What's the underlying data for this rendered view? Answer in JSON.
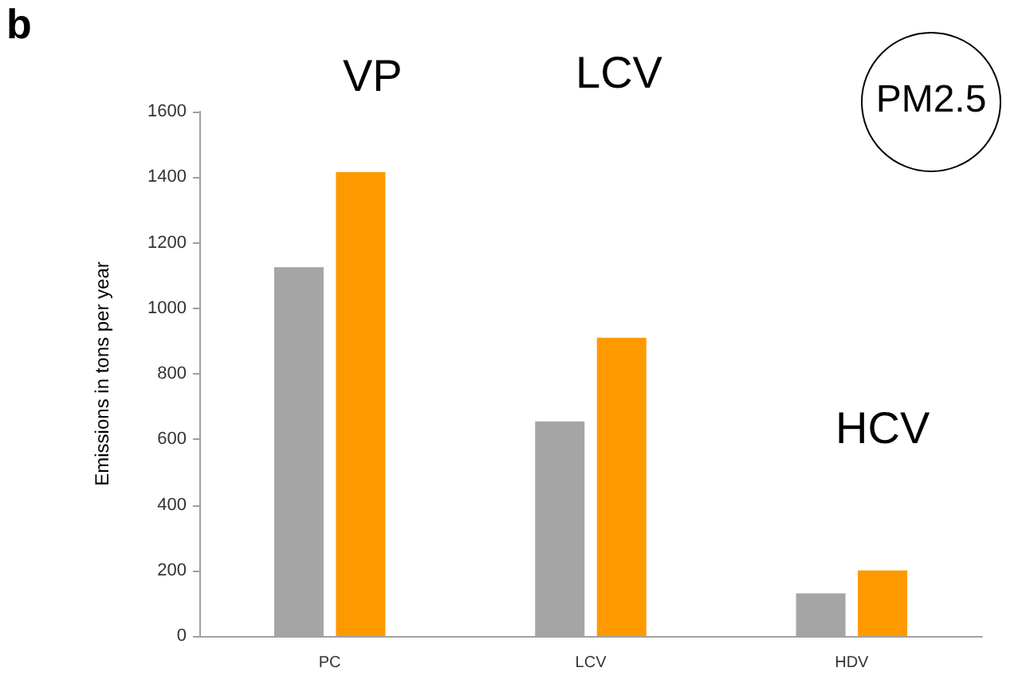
{
  "chart_data": {
    "type": "bar",
    "ylabel": "Emissions in tons per year",
    "categories": [
      "PC",
      "LCV",
      "HDV"
    ],
    "series": [
      {
        "color": "#a5a5a5",
        "values": [
          1125,
          655,
          130
        ]
      },
      {
        "color": "#ff9900",
        "values": [
          1415,
          910,
          200
        ]
      }
    ],
    "ylim": [
      0,
      1600
    ],
    "yticks": [
      0,
      200,
      400,
      600,
      800,
      1000,
      1200,
      1400,
      1600
    ],
    "grid": false,
    "annotations": [
      "b",
      "VP",
      "LCV",
      "HCV",
      "PM2.5"
    ]
  }
}
